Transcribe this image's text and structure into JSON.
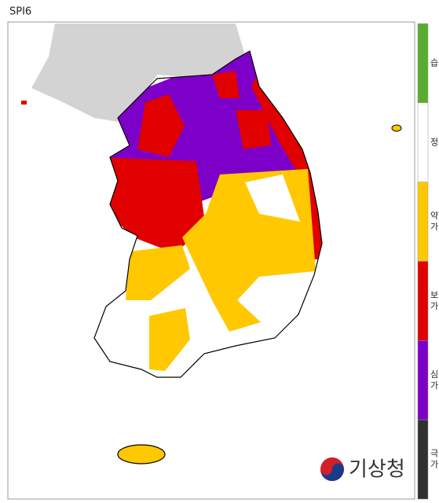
{
  "title": "SPI6",
  "legend": {
    "items": [
      {
        "label": [
          "습"
        ],
        "color": "#5aac2e"
      },
      {
        "label": [
          "정"
        ],
        "color": "#ffffff"
      },
      {
        "label": [
          "약",
          "가"
        ],
        "color": "#ffc800"
      },
      {
        "label": [
          "보",
          "가"
        ],
        "color": "#e00000"
      },
      {
        "label": [
          "심",
          "가"
        ],
        "color": "#7d00c8"
      },
      {
        "label": [
          "극",
          "가"
        ],
        "color": "#303030"
      }
    ]
  },
  "logo": "기상청"
}
